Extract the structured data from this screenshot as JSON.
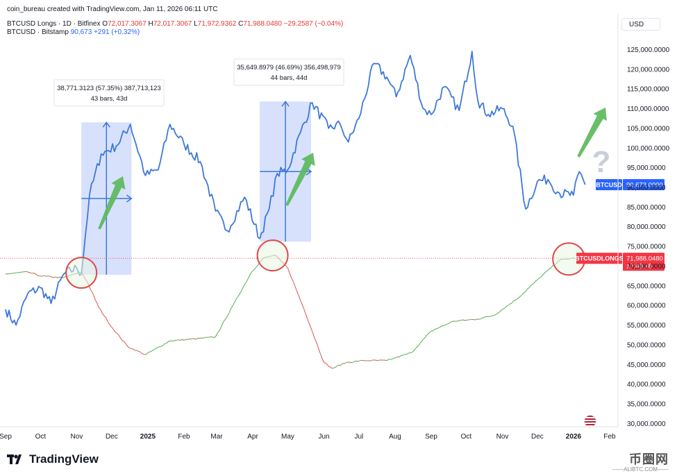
{
  "header": {
    "attribution": "coin_bureau created with TradingView.com, Jan 11, 2026 06:11 UTC",
    "legend1": {
      "name": "BTCUSD Longs · 1D · Bitfinex",
      "o_label": "O",
      "o": "72,017.3067",
      "h_label": "H",
      "h": "72,017.3067",
      "l_label": "L",
      "l": "71,972.9362",
      "c_label": "C",
      "c": "71,988.0480",
      "change": "−29.2587 (−0.04%)"
    },
    "legend2": {
      "name": "BTCUSD · Bitstamp",
      "value": "90,673",
      "change": "+291 (+0.32%)"
    }
  },
  "currency": "USD",
  "price_axis_labels": [
    "125,000.0000",
    "120,000.0000",
    "115,000.0000",
    "110,000.0000",
    "105,000.0000",
    "100,000.0000",
    "95,000.0000",
    "90,000.0000",
    "85,000.0000",
    "80,000.0000",
    "75,000.0000",
    "70,000.0000",
    "65,000.0000",
    "60,000.0000",
    "55,000.0000",
    "50,000.0000",
    "45,000.0000",
    "40,000.0000",
    "35,000.0000",
    "30,000.0000"
  ],
  "time_axis_labels": [
    "Sep",
    "Oct",
    "Nov",
    "Dec",
    "2025",
    "Feb",
    "Mar",
    "Apr",
    "May",
    "Jun",
    "Jul",
    "Aug",
    "Sep",
    "Oct",
    "Nov",
    "Dec",
    "2026",
    "Feb"
  ],
  "price_tags": {
    "btcusd_name": "BTCUSD",
    "btcusd_value": "90,673.0000",
    "longs_name": "BTCUSDLONGS",
    "longs_value": "71,988.0480",
    "longs_countdown": "17:48:38"
  },
  "annotations": {
    "range1_line1": "38,771.3123 (57.35%) 387,713,123",
    "range1_line2": "43 bars, 43d",
    "range2_line1": "35,649.8979 (46.69%) 356,498,979",
    "range2_line2": "44 bars, 44d",
    "question_mark": "?"
  },
  "brand": "TradingView",
  "watermark": {
    "cn": "币圈网",
    "url": "——ALIBTC.COM——"
  },
  "colors": {
    "btc_line": "#3c78d8",
    "longs_up": "#4caf50",
    "longs_down": "#d9534f",
    "measure_fill": "#c9d7fb",
    "circle": "#e04848",
    "arrow_green": "#5cb85c",
    "tag_blue": "#2962ff",
    "tag_red": "#f23645"
  },
  "chart_data": [
    {
      "type": "line",
      "name": "BTCUSD · Bitstamp",
      "x_unit": "date",
      "x": [
        "2024-09-01",
        "2024-09-10",
        "2024-09-20",
        "2024-10-01",
        "2024-10-10",
        "2024-10-21",
        "2024-11-01",
        "2024-11-05",
        "2024-11-12",
        "2024-11-22",
        "2024-12-05",
        "2024-12-17",
        "2024-12-30",
        "2025-01-10",
        "2025-01-20",
        "2025-02-01",
        "2025-02-15",
        "2025-02-28",
        "2025-03-10",
        "2025-03-25",
        "2025-04-07",
        "2025-04-15",
        "2025-04-22",
        "2025-05-01",
        "2025-05-12",
        "2025-05-22",
        "2025-06-05",
        "2025-06-15",
        "2025-06-22",
        "2025-07-01",
        "2025-07-14",
        "2025-07-25",
        "2025-08-02",
        "2025-08-14",
        "2025-08-25",
        "2025-09-01",
        "2025-09-12",
        "2025-09-25",
        "2025-10-06",
        "2025-10-11",
        "2025-10-20",
        "2025-11-01",
        "2025-11-10",
        "2025-11-21",
        "2025-12-01",
        "2025-12-10",
        "2025-12-20",
        "2026-01-01",
        "2026-01-06",
        "2026-01-11"
      ],
      "values": [
        59000,
        55000,
        63000,
        64500,
        60500,
        68000,
        69500,
        68000,
        88000,
        98500,
        100500,
        106000,
        93000,
        94500,
        106000,
        101000,
        96500,
        84000,
        79000,
        87500,
        77000,
        84500,
        93500,
        94500,
        104000,
        111500,
        105000,
        106000,
        101500,
        107500,
        121500,
        118000,
        113000,
        123500,
        110000,
        108500,
        115500,
        109500,
        124500,
        112000,
        108500,
        110000,
        105500,
        84500,
        91500,
        92000,
        88500,
        88000,
        94000,
        90673
      ],
      "ylim": [
        30000,
        127000
      ]
    },
    {
      "type": "line",
      "name": "BTCUSD Longs · 1D · Bitfinex",
      "x_unit": "date",
      "x": [
        "2024-09-01",
        "2024-09-20",
        "2024-10-01",
        "2024-10-20",
        "2024-11-05",
        "2024-11-10",
        "2024-11-20",
        "2024-12-01",
        "2024-12-15",
        "2024-12-30",
        "2025-01-20",
        "2025-02-10",
        "2025-02-28",
        "2025-03-15",
        "2025-03-31",
        "2025-04-10",
        "2025-04-20",
        "2025-05-01",
        "2025-05-15",
        "2025-06-01",
        "2025-06-08",
        "2025-06-20",
        "2025-07-05",
        "2025-07-25",
        "2025-08-15",
        "2025-09-01",
        "2025-09-20",
        "2025-10-10",
        "2025-10-25",
        "2025-11-15",
        "2025-12-01",
        "2025-12-20",
        "2026-01-01",
        "2026-01-11"
      ],
      "values": [
        68000,
        68500,
        67500,
        67000,
        68500,
        66000,
        59500,
        54500,
        49500,
        47500,
        51000,
        51500,
        52000,
        60000,
        68500,
        72000,
        72800,
        69500,
        59000,
        45500,
        44000,
        45500,
        46000,
        46000,
        48000,
        53500,
        56000,
        56500,
        57500,
        62000,
        66500,
        71500,
        72000,
        71988.048
      ],
      "ylim": [
        30000,
        127000
      ]
    }
  ]
}
